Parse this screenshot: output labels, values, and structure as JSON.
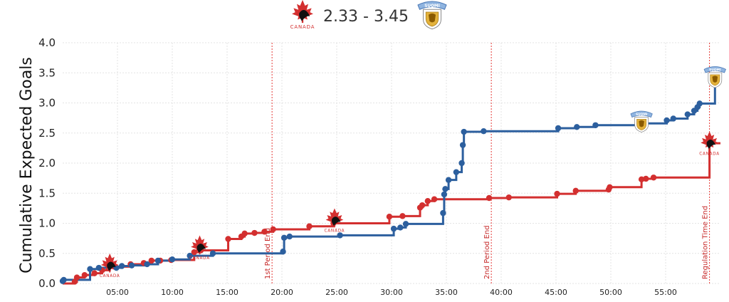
{
  "header": {
    "score": "2.33 - 3.45",
    "team_left_logo": "canada-maple-leaf-logo",
    "team_right_logo": "suomi-lion-crest-logo",
    "team_left_wordmark": "CANADA",
    "team_right_wordmark": "SUOMI"
  },
  "colors": {
    "canada": "#d32f2f",
    "finland": "#2c5f9e",
    "grid": "#e3e3e3",
    "event_line": "#e53935"
  },
  "chart_data": {
    "type": "line",
    "step": true,
    "ylabel": "Cumulative Expected Goals",
    "xlabel": "",
    "xlim": [
      0,
      60
    ],
    "ylim": [
      0,
      4.0
    ],
    "yticks": [
      "0.0",
      "0.5",
      "1.0",
      "1.5",
      "2.0",
      "2.5",
      "3.0",
      "3.5",
      "4.0"
    ],
    "xticks": [
      {
        "v": 5,
        "label": "05:00"
      },
      {
        "v": 10,
        "label": "10:00"
      },
      {
        "v": 15,
        "label": "15:00"
      },
      {
        "v": 20,
        "label": "20:00"
      },
      {
        "v": 25,
        "label": "25:00"
      },
      {
        "v": 30,
        "label": "30:00"
      },
      {
        "v": 35,
        "label": "35:00"
      },
      {
        "v": 40,
        "label": "40:00"
      },
      {
        "v": 45,
        "label": "45:00"
      },
      {
        "v": 50,
        "label": "50:00"
      },
      {
        "v": 55,
        "label": "55:00"
      }
    ],
    "grid": true,
    "event_lines": [
      {
        "x": 19.1,
        "label": "1st Period End"
      },
      {
        "x": 39.1,
        "label": "2nd Period End"
      },
      {
        "x": 59.0,
        "label": "Regulation Time End"
      }
    ],
    "series": [
      {
        "team": "canada",
        "points": [
          [
            0,
            0
          ],
          [
            1.1,
            0.03
          ],
          [
            1.3,
            0.1
          ],
          [
            2.0,
            0.14
          ],
          [
            2.9,
            0.17
          ],
          [
            3.6,
            0.22
          ],
          [
            4.3,
            0.28
          ],
          [
            6.2,
            0.32
          ],
          [
            7.4,
            0.34
          ],
          [
            8.1,
            0.38
          ],
          [
            8.9,
            0.38
          ],
          [
            9.9,
            0.39
          ],
          [
            12.0,
            0.52
          ],
          [
            12.6,
            0.55
          ],
          [
            15.1,
            0.74
          ],
          [
            16.3,
            0.78
          ],
          [
            16.6,
            0.83
          ],
          [
            17.5,
            0.84
          ],
          [
            18.4,
            0.86
          ],
          [
            19.2,
            0.9
          ],
          [
            22.5,
            0.95
          ],
          [
            24.7,
            1.0
          ],
          [
            29.8,
            1.11
          ],
          [
            31.0,
            1.12
          ],
          [
            32.6,
            1.26
          ],
          [
            32.8,
            1.3
          ],
          [
            33.3,
            1.37
          ],
          [
            33.9,
            1.4
          ],
          [
            38.9,
            1.42
          ],
          [
            40.7,
            1.43
          ],
          [
            45.1,
            1.49
          ],
          [
            46.8,
            1.54
          ],
          [
            49.8,
            1.56
          ],
          [
            49.9,
            1.6
          ],
          [
            52.8,
            1.73
          ],
          [
            53.2,
            1.74
          ],
          [
            53.9,
            1.76
          ],
          [
            59.0,
            2.33
          ]
        ]
      },
      {
        "team": "finland",
        "points": [
          [
            0,
            0.04
          ],
          [
            0.1,
            0.06
          ],
          [
            2.5,
            0.24
          ],
          [
            3.3,
            0.26
          ],
          [
            4.9,
            0.26
          ],
          [
            5.4,
            0.29
          ],
          [
            6.3,
            0.3
          ],
          [
            7.7,
            0.32
          ],
          [
            8.7,
            0.38
          ],
          [
            10.0,
            0.4
          ],
          [
            11.6,
            0.46
          ],
          [
            13.7,
            0.5
          ],
          [
            20.1,
            0.53
          ],
          [
            20.2,
            0.76
          ],
          [
            20.7,
            0.78
          ],
          [
            25.3,
            0.8
          ],
          [
            30.2,
            0.91
          ],
          [
            30.8,
            0.93
          ],
          [
            31.3,
            0.99
          ],
          [
            34.7,
            1.17
          ],
          [
            34.8,
            1.48
          ],
          [
            34.9,
            1.57
          ],
          [
            35.2,
            1.72
          ],
          [
            35.9,
            1.85
          ],
          [
            36.4,
            2.0
          ],
          [
            36.5,
            2.3
          ],
          [
            36.6,
            2.52
          ],
          [
            38.4,
            2.53
          ],
          [
            45.2,
            2.58
          ],
          [
            46.9,
            2.6
          ],
          [
            48.6,
            2.63
          ],
          [
            52.8,
            2.66
          ],
          [
            55.1,
            2.71
          ],
          [
            55.7,
            2.74
          ],
          [
            57.0,
            2.81
          ],
          [
            57.6,
            2.87
          ],
          [
            57.9,
            2.93
          ],
          [
            58.1,
            2.99
          ],
          [
            59.5,
            3.35
          ],
          [
            59.6,
            3.45
          ]
        ]
      }
    ],
    "marker_logos": [
      {
        "team": "canada",
        "x": 4.3,
        "y": 0.27
      },
      {
        "team": "canada",
        "x": 12.5,
        "y": 0.57
      },
      {
        "team": "canada",
        "x": 24.8,
        "y": 1.02
      },
      {
        "team": "canada",
        "x": 59.0,
        "y": 2.3
      },
      {
        "team": "finland",
        "x": 52.8,
        "y": 2.66
      },
      {
        "team": "finland",
        "x": 59.5,
        "y": 3.4
      }
    ]
  }
}
